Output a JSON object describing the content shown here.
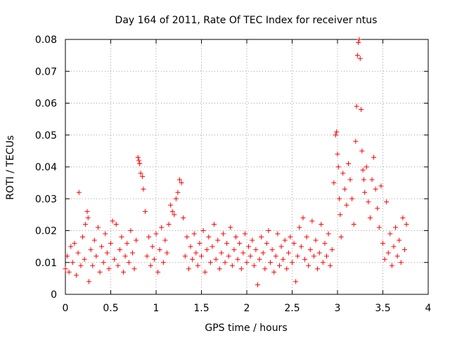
{
  "chart_data": {
    "type": "scatter",
    "title": "Day 164 of 2011, Rate Of TEC Index for receiver ntus",
    "xlabel": "GPS time / hours",
    "ylabel": "ROTI / TECUs",
    "xlim": [
      0,
      4
    ],
    "ylim": [
      0,
      0.08
    ],
    "xticks": [
      0,
      0.5,
      1,
      1.5,
      2,
      2.5,
      3,
      3.5,
      4
    ],
    "xtick_labels": [
      "0",
      "0.5",
      "1",
      "1.5",
      "2",
      "2.5",
      "3",
      "3.5",
      "4"
    ],
    "yticks": [
      0,
      0.01,
      0.02,
      0.03,
      0.04,
      0.05,
      0.06,
      0.07,
      0.08
    ],
    "ytick_labels": [
      "0",
      "0.01",
      "0.02",
      "0.03",
      "0.04",
      "0.05",
      "0.06",
      "0.07",
      "0.08"
    ],
    "grid": true,
    "marker": "+",
    "marker_color": "#ff0000",
    "series": [
      {
        "name": "ROTI",
        "points": [
          [
            0.0,
            0.008
          ],
          [
            0.02,
            0.012
          ],
          [
            0.04,
            0.007
          ],
          [
            0.06,
            0.015
          ],
          [
            0.08,
            0.01
          ],
          [
            0.1,
            0.016
          ],
          [
            0.12,
            0.006
          ],
          [
            0.14,
            0.013
          ],
          [
            0.15,
            0.032
          ],
          [
            0.17,
            0.009
          ],
          [
            0.19,
            0.018
          ],
          [
            0.21,
            0.011
          ],
          [
            0.22,
            0.022
          ],
          [
            0.24,
            0.026
          ],
          [
            0.25,
            0.024
          ],
          [
            0.26,
            0.004
          ],
          [
            0.28,
            0.014
          ],
          [
            0.3,
            0.009
          ],
          [
            0.32,
            0.017
          ],
          [
            0.34,
            0.012
          ],
          [
            0.36,
            0.021
          ],
          [
            0.38,
            0.007
          ],
          [
            0.4,
            0.015
          ],
          [
            0.42,
            0.01
          ],
          [
            0.44,
            0.019
          ],
          [
            0.46,
            0.013
          ],
          [
            0.48,
            0.008
          ],
          [
            0.5,
            0.016
          ],
          [
            0.52,
            0.023
          ],
          [
            0.54,
            0.011
          ],
          [
            0.56,
            0.022
          ],
          [
            0.58,
            0.009
          ],
          [
            0.6,
            0.014
          ],
          [
            0.62,
            0.018
          ],
          [
            0.64,
            0.007
          ],
          [
            0.66,
            0.012
          ],
          [
            0.68,
            0.016
          ],
          [
            0.7,
            0.01
          ],
          [
            0.72,
            0.02
          ],
          [
            0.74,
            0.013
          ],
          [
            0.76,
            0.008
          ],
          [
            0.78,
            0.017
          ],
          [
            0.8,
            0.043
          ],
          [
            0.81,
            0.042
          ],
          [
            0.82,
            0.041
          ],
          [
            0.83,
            0.038
          ],
          [
            0.85,
            0.037
          ],
          [
            0.86,
            0.033
          ],
          [
            0.88,
            0.026
          ],
          [
            0.9,
            0.012
          ],
          [
            0.92,
            0.018
          ],
          [
            0.94,
            0.009
          ],
          [
            0.96,
            0.015
          ],
          [
            0.98,
            0.011
          ],
          [
            1.0,
            0.019
          ],
          [
            1.02,
            0.007
          ],
          [
            1.04,
            0.014
          ],
          [
            1.06,
            0.021
          ],
          [
            1.08,
            0.01
          ],
          [
            1.1,
            0.017
          ],
          [
            1.12,
            0.013
          ],
          [
            1.14,
            0.022
          ],
          [
            1.16,
            0.028
          ],
          [
            1.18,
            0.026
          ],
          [
            1.2,
            0.025
          ],
          [
            1.22,
            0.03
          ],
          [
            1.24,
            0.032
          ],
          [
            1.26,
            0.036
          ],
          [
            1.28,
            0.035
          ],
          [
            1.3,
            0.024
          ],
          [
            1.32,
            0.012
          ],
          [
            1.34,
            0.018
          ],
          [
            1.36,
            0.008
          ],
          [
            1.38,
            0.015
          ],
          [
            1.4,
            0.011
          ],
          [
            1.42,
            0.019
          ],
          [
            1.44,
            0.013
          ],
          [
            1.46,
            0.009
          ],
          [
            1.48,
            0.016
          ],
          [
            1.5,
            0.012
          ],
          [
            1.52,
            0.02
          ],
          [
            1.54,
            0.007
          ],
          [
            1.56,
            0.014
          ],
          [
            1.58,
            0.018
          ],
          [
            1.6,
            0.01
          ],
          [
            1.62,
            0.015
          ],
          [
            1.64,
            0.022
          ],
          [
            1.66,
            0.011
          ],
          [
            1.68,
            0.017
          ],
          [
            1.7,
            0.008
          ],
          [
            1.72,
            0.013
          ],
          [
            1.74,
            0.019
          ],
          [
            1.76,
            0.01
          ],
          [
            1.78,
            0.016
          ],
          [
            1.8,
            0.012
          ],
          [
            1.82,
            0.021
          ],
          [
            1.84,
            0.009
          ],
          [
            1.86,
            0.014
          ],
          [
            1.88,
            0.018
          ],
          [
            1.9,
            0.011
          ],
          [
            1.92,
            0.016
          ],
          [
            1.94,
            0.008
          ],
          [
            1.96,
            0.013
          ],
          [
            1.98,
            0.019
          ],
          [
            2.0,
            0.01
          ],
          [
            2.02,
            0.015
          ],
          [
            2.04,
            0.012
          ],
          [
            2.06,
            0.017
          ],
          [
            2.08,
            0.009
          ],
          [
            2.1,
            0.014
          ],
          [
            2.12,
            0.003
          ],
          [
            2.14,
            0.011
          ],
          [
            2.16,
            0.018
          ],
          [
            2.18,
            0.013
          ],
          [
            2.2,
            0.008
          ],
          [
            2.22,
            0.016
          ],
          [
            2.24,
            0.02
          ],
          [
            2.26,
            0.01
          ],
          [
            2.28,
            0.014
          ],
          [
            2.3,
            0.007
          ],
          [
            2.32,
            0.012
          ],
          [
            2.34,
            0.019
          ],
          [
            2.36,
            0.009
          ],
          [
            2.38,
            0.015
          ],
          [
            2.4,
            0.011
          ],
          [
            2.42,
            0.017
          ],
          [
            2.44,
            0.008
          ],
          [
            2.46,
            0.013
          ],
          [
            2.48,
            0.018
          ],
          [
            2.5,
            0.01
          ],
          [
            2.52,
            0.016
          ],
          [
            2.54,
            0.004
          ],
          [
            2.56,
            0.012
          ],
          [
            2.58,
            0.021
          ],
          [
            2.6,
            0.015
          ],
          [
            2.62,
            0.024
          ],
          [
            2.64,
            0.011
          ],
          [
            2.66,
            0.018
          ],
          [
            2.68,
            0.009
          ],
          [
            2.7,
            0.014
          ],
          [
            2.72,
            0.023
          ],
          [
            2.74,
            0.012
          ],
          [
            2.76,
            0.017
          ],
          [
            2.78,
            0.008
          ],
          [
            2.8,
            0.013
          ],
          [
            2.82,
            0.022
          ],
          [
            2.84,
            0.01
          ],
          [
            2.86,
            0.016
          ],
          [
            2.88,
            0.012
          ],
          [
            2.9,
            0.019
          ],
          [
            2.92,
            0.009
          ],
          [
            2.94,
            0.014
          ],
          [
            2.96,
            0.035
          ],
          [
            2.98,
            0.05
          ],
          [
            2.99,
            0.051
          ],
          [
            3.0,
            0.044
          ],
          [
            3.01,
            0.04
          ],
          [
            3.02,
            0.03
          ],
          [
            3.03,
            0.025
          ],
          [
            3.04,
            0.018
          ],
          [
            3.06,
            0.038
          ],
          [
            3.08,
            0.033
          ],
          [
            3.1,
            0.028
          ],
          [
            3.12,
            0.041
          ],
          [
            3.14,
            0.036
          ],
          [
            3.16,
            0.03
          ],
          [
            3.18,
            0.022
          ],
          [
            3.2,
            0.048
          ],
          [
            3.21,
            0.059
          ],
          [
            3.22,
            0.075
          ],
          [
            3.23,
            0.079
          ],
          [
            3.24,
            0.08
          ],
          [
            3.25,
            0.074
          ],
          [
            3.26,
            0.058
          ],
          [
            3.27,
            0.045
          ],
          [
            3.28,
            0.039
          ],
          [
            3.29,
            0.036
          ],
          [
            3.3,
            0.032
          ],
          [
            3.32,
            0.04
          ],
          [
            3.34,
            0.029
          ],
          [
            3.36,
            0.024
          ],
          [
            3.38,
            0.036
          ],
          [
            3.4,
            0.043
          ],
          [
            3.42,
            0.033
          ],
          [
            3.44,
            0.027
          ],
          [
            3.46,
            0.021
          ],
          [
            3.48,
            0.034
          ],
          [
            3.5,
            0.016
          ],
          [
            3.52,
            0.011
          ],
          [
            3.54,
            0.029
          ],
          [
            3.56,
            0.013
          ],
          [
            3.58,
            0.019
          ],
          [
            3.6,
            0.009
          ],
          [
            3.62,
            0.015
          ],
          [
            3.64,
            0.021
          ],
          [
            3.66,
            0.012
          ],
          [
            3.68,
            0.017
          ],
          [
            3.7,
            0.01
          ],
          [
            3.72,
            0.024
          ],
          [
            3.74,
            0.014
          ],
          [
            3.76,
            0.022
          ]
        ]
      }
    ]
  }
}
